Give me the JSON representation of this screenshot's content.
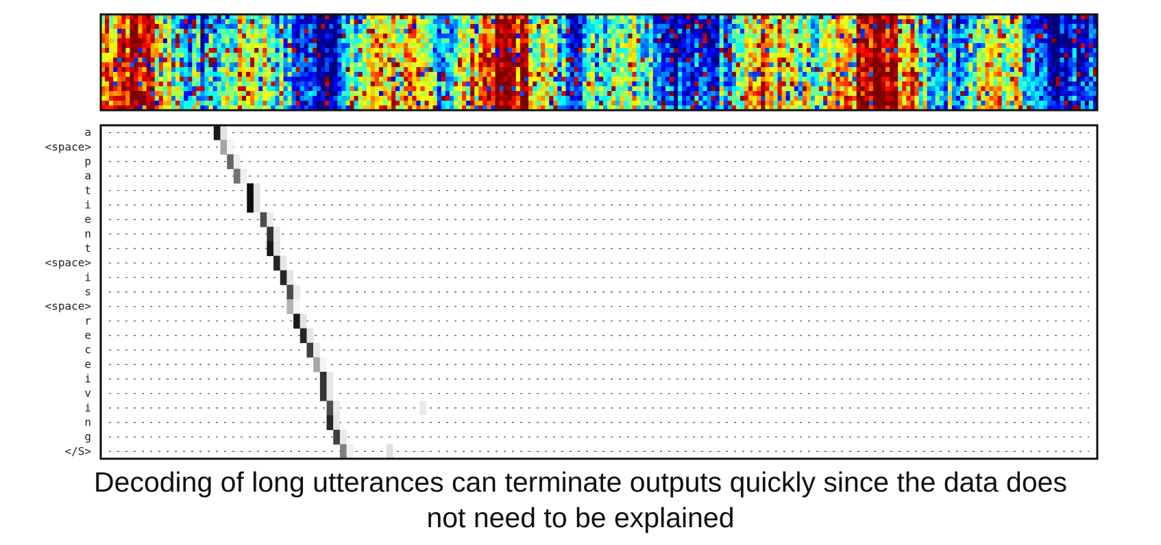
{
  "chart_data": [
    {
      "type": "heatmap",
      "title": "",
      "colormap": "jet",
      "description_values": "spectrogram of the input speech; no axis ticks or labels are shown"
    },
    {
      "type": "heatmap",
      "title": "",
      "xlabel": "",
      "ylabel": "",
      "colormap": "gray_r",
      "grid": true,
      "grid_style": "dotted",
      "y_categories": [
        "a",
        "<space>",
        "p",
        "a",
        "t",
        "i",
        "e",
        "n",
        "t",
        "<space>",
        "i",
        "s",
        "<space>",
        "r",
        "e",
        "c",
        "e",
        "i",
        "v",
        "i",
        "n",
        "g",
        "</S>"
      ],
      "x_frame_count": 150,
      "attention_peak_frame": [
        17,
        18,
        19,
        20,
        22,
        22,
        24,
        25,
        25,
        26,
        27,
        28,
        28,
        29,
        30,
        31,
        32,
        33,
        33,
        34,
        34,
        35,
        36
      ],
      "attention_peak_weight": [
        0.9,
        0.35,
        0.6,
        0.55,
        0.95,
        0.95,
        0.7,
        0.8,
        0.9,
        0.85,
        0.85,
        0.7,
        0.3,
        0.9,
        0.85,
        0.75,
        0.35,
        0.8,
        0.8,
        0.7,
        0.85,
        0.75,
        0.5
      ],
      "secondary_weights": [
        {
          "row": 19,
          "frame": 48,
          "weight": 0.08
        },
        {
          "row": 22,
          "frame": 43,
          "weight": 0.12
        }
      ]
    }
  ],
  "caption": {
    "line1": "Decoding of long utterances can terminate outputs quickly since the data does",
    "line2": "not need to be explained"
  }
}
